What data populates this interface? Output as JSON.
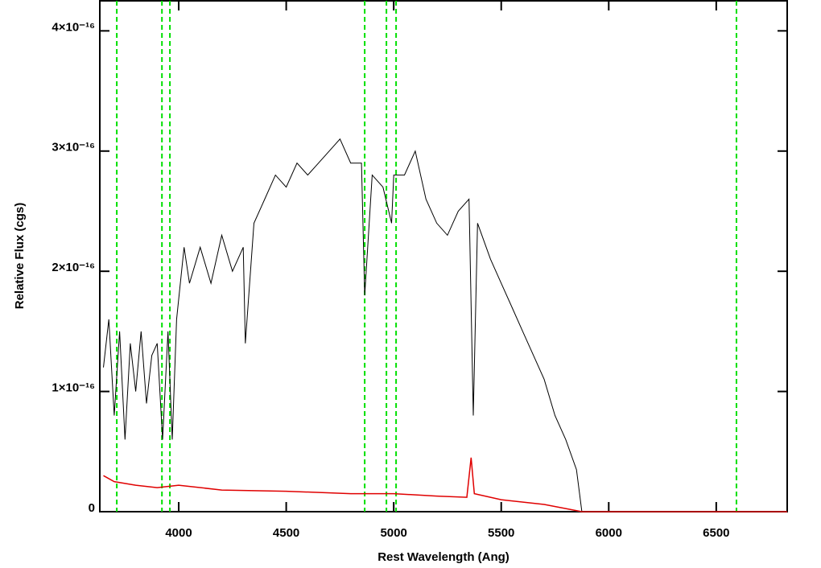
{
  "chart_data": {
    "type": "line",
    "xlabel": "Rest Wavelength (Ang)",
    "ylabel": "Relative Flux (cgs)",
    "xlim": [
      3633,
      6830
    ],
    "ylim": [
      0,
      4.25e-16
    ],
    "xticks": [
      4000,
      4500,
      5000,
      5500,
      6000,
      6500
    ],
    "yticks": [
      0,
      {
        "value": 1e-16,
        "label": "1×10⁻¹⁶"
      },
      {
        "value": 2e-16,
        "label": "2×10⁻¹⁶"
      },
      {
        "value": 3e-16,
        "label": "3×10⁻¹⁶"
      },
      {
        "value": 4e-16,
        "label": "4×10⁻¹⁶"
      }
    ],
    "vlines": {
      "color": "#00e000",
      "x": [
        3712,
        3922,
        3959,
        4865,
        4966,
        5011,
        6594
      ]
    },
    "series": [
      {
        "color": "#000000",
        "x": [
          3650,
          3675,
          3700,
          3725,
          3750,
          3775,
          3800,
          3825,
          3850,
          3875,
          3900,
          3925,
          3950,
          3970,
          3990,
          4025,
          4050,
          4100,
          4150,
          4200,
          4250,
          4300,
          4310,
          4350,
          4400,
          4450,
          4500,
          4550,
          4600,
          4650,
          4700,
          4750,
          4800,
          4850,
          4865,
          4900,
          4950,
          4990,
          5000,
          5050,
          5100,
          5150,
          5200,
          5250,
          5300,
          5350,
          5370,
          5390,
          5450,
          5500,
          5550,
          5600,
          5650,
          5700,
          5750,
          5800,
          5850,
          5875,
          6830
        ],
        "values": [
          1.2e-16,
          1.6e-16,
          8e-17,
          1.5e-16,
          6e-17,
          1.4e-16,
          1e-16,
          1.5e-16,
          9e-17,
          1.3e-16,
          1.4e-16,
          6e-17,
          1.5e-16,
          6e-17,
          1.6e-16,
          2.2e-16,
          1.9e-16,
          2.2e-16,
          1.9e-16,
          2.3e-16,
          2e-16,
          2.2e-16,
          1.4e-16,
          2.4e-16,
          2.6e-16,
          2.8e-16,
          2.7e-16,
          2.9e-16,
          2.8e-16,
          2.9e-16,
          3e-16,
          3.1e-16,
          2.9e-16,
          2.9e-16,
          1.8e-16,
          2.8e-16,
          2.7e-16,
          2.4e-16,
          2.8e-16,
          2.8e-16,
          3e-16,
          2.6e-16,
          2.4e-16,
          2.3e-16,
          2.5e-16,
          2.6e-16,
          8e-17,
          2.4e-16,
          2.1e-16,
          1.9e-16,
          1.7e-16,
          1.5e-16,
          1.3e-16,
          1.1e-16,
          8e-17,
          6e-17,
          3.5e-17,
          0,
          0
        ]
      },
      {
        "color": "#e00000",
        "x": [
          3650,
          3700,
          3800,
          3900,
          4000,
          4200,
          4500,
          4800,
          5000,
          5200,
          5340,
          5360,
          5375,
          5500,
          5700,
          5875,
          6830
        ],
        "values": [
          3e-17,
          2.5e-17,
          2.2e-17,
          2e-17,
          2.2e-17,
          1.8e-17,
          1.7e-17,
          1.5e-17,
          1.5e-17,
          1.3e-17,
          1.2e-17,
          4.5e-17,
          1.5e-17,
          1e-17,
          6e-18,
          0,
          0
        ]
      }
    ]
  }
}
